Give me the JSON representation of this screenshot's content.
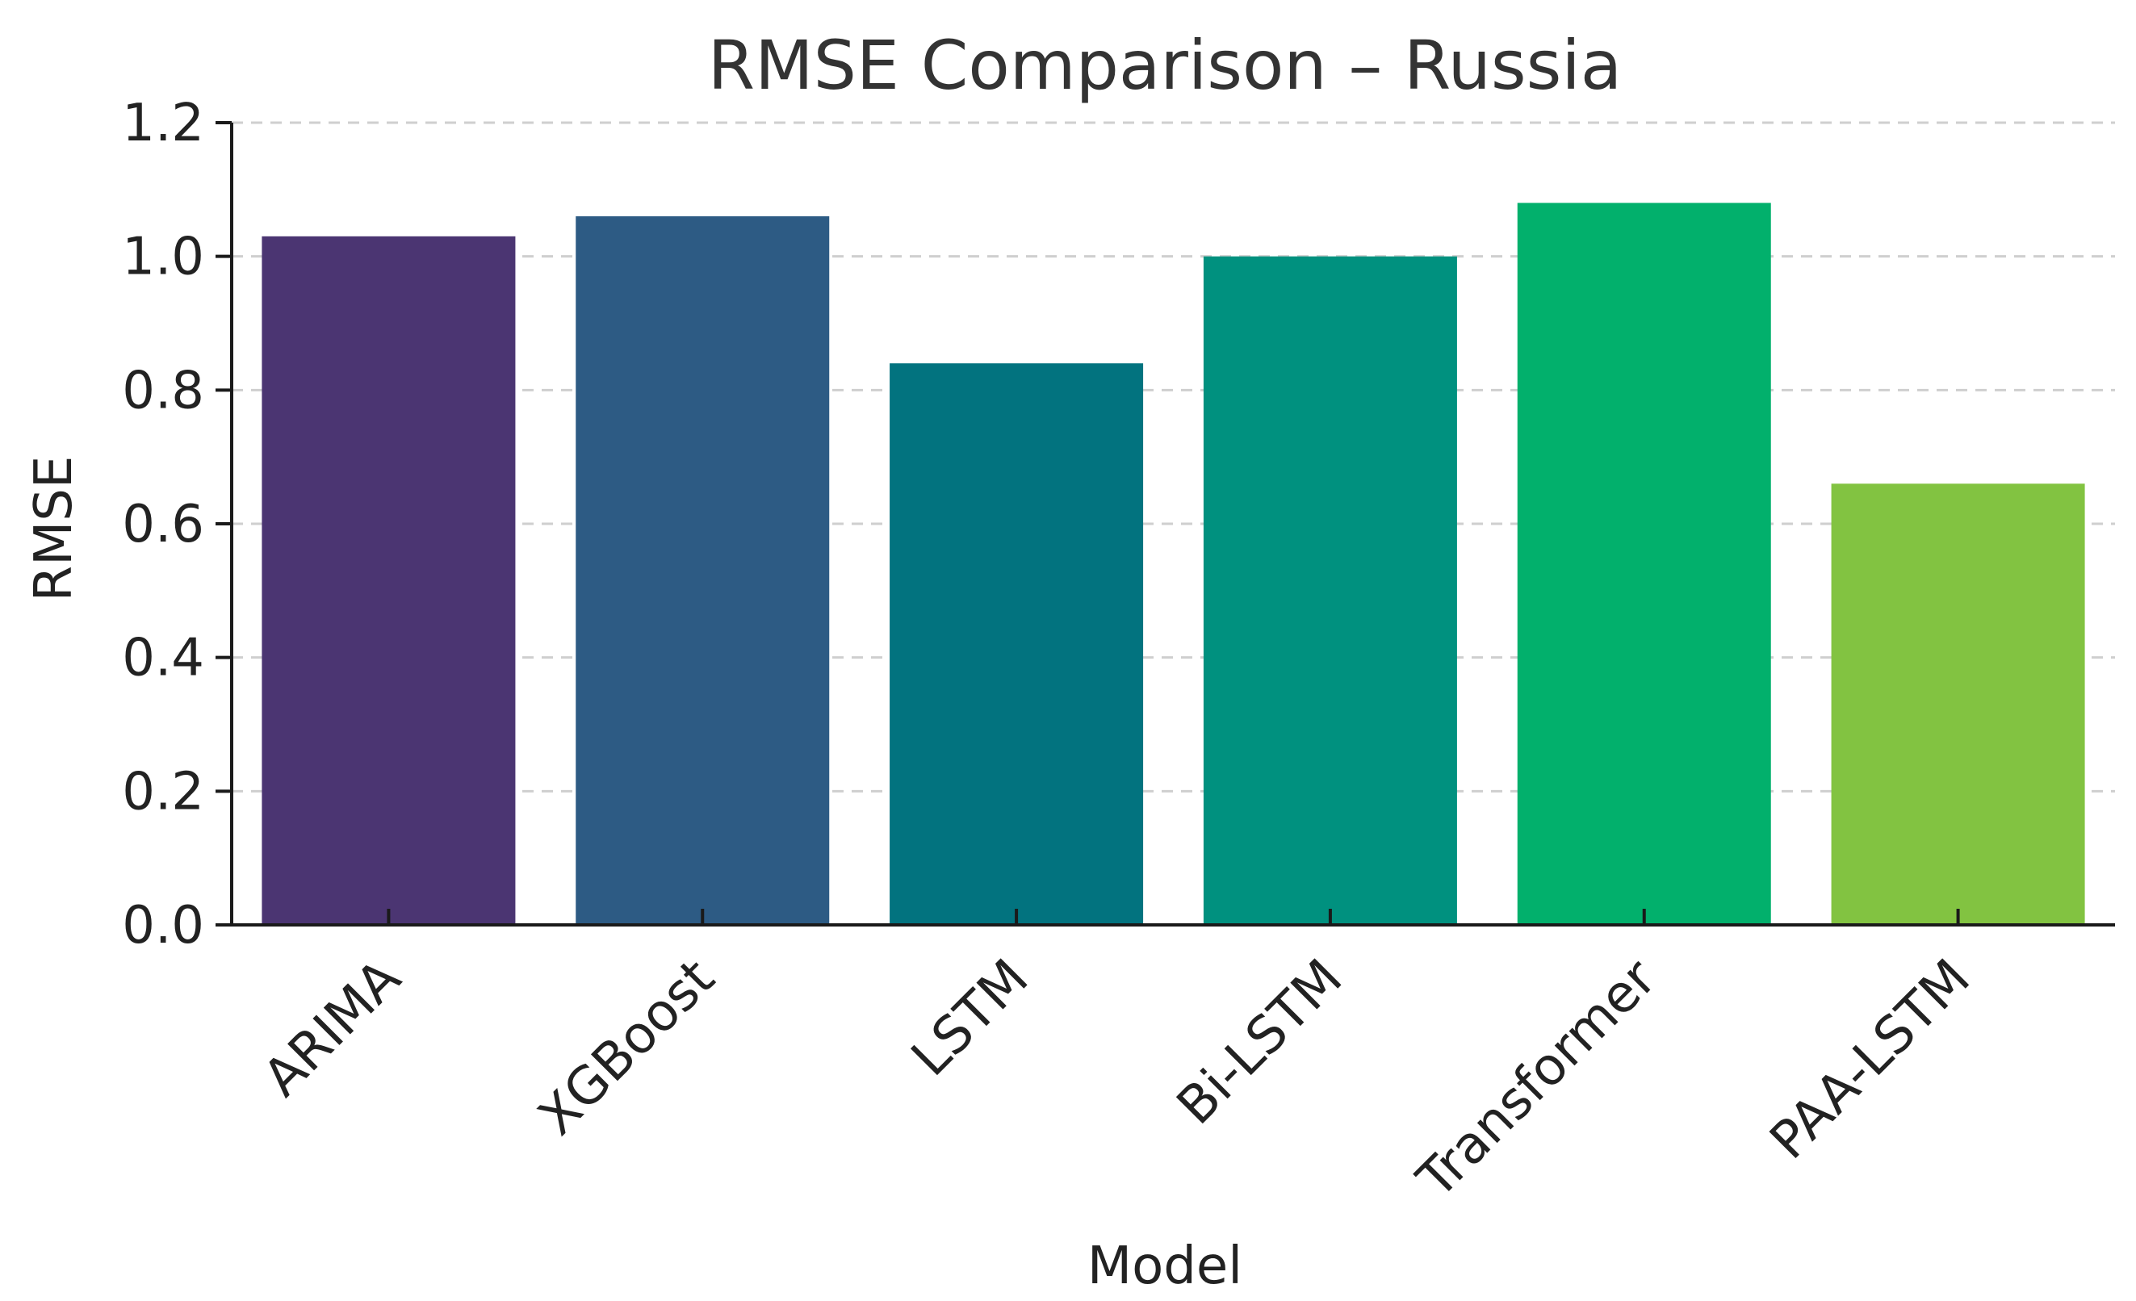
{
  "chart_data": {
    "type": "bar",
    "title": "RMSE Comparison – Russia",
    "xlabel": "Model",
    "ylabel": "RMSE",
    "categories": [
      "ARIMA",
      "XGBoost",
      "LSTM",
      "Bi-LSTM",
      "Transformer",
      "PAA-LSTM"
    ],
    "values": [
      1.03,
      1.06,
      0.84,
      1.0,
      1.08,
      0.66
    ],
    "colors": [
      "#4b3572",
      "#2d5b84",
      "#02737f",
      "#00917f",
      "#02b06c",
      "#82c341"
    ],
    "ylim": [
      0,
      1.2
    ],
    "yticks": [
      "0.0",
      "0.2",
      "0.4",
      "0.6",
      "0.8",
      "1.0",
      "1.2"
    ],
    "grid": "y-dashed",
    "legend": "none"
  }
}
